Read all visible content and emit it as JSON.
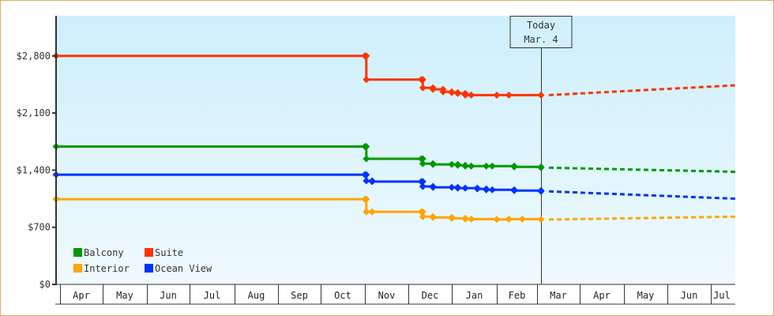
{
  "chart_data": {
    "type": "line",
    "title": "",
    "xlabel": "",
    "ylabel": "",
    "ylim": [
      0,
      3300
    ],
    "yticks": [
      {
        "value": 0,
        "label": "$0"
      },
      {
        "value": 700,
        "label": "$700"
      },
      {
        "value": 1400,
        "label": "$1,400"
      },
      {
        "value": 2100,
        "label": "$2,100"
      },
      {
        "value": 2800,
        "label": "$2,800"
      }
    ],
    "months": [
      "Apr",
      "May",
      "Jun",
      "Jul",
      "Aug",
      "Sep",
      "Oct",
      "Nov",
      "Dec",
      "Jan",
      "Feb",
      "Mar",
      "Apr",
      "May",
      "Jun",
      "Jul"
    ],
    "grid": false,
    "legend_position": "bottom-left inside",
    "legend": [
      {
        "name": "Balcony",
        "color": "#009900"
      },
      {
        "name": "Suite",
        "color": "#ff3300"
      },
      {
        "name": "Interior",
        "color": "#ffa500"
      },
      {
        "name": "Ocean View",
        "color": "#0033ff"
      }
    ],
    "annotation": {
      "line1": "Today",
      "line2": "Mar. 4"
    },
    "series": [
      {
        "name": "Suite",
        "color": "#ff3300",
        "step_points": [
          {
            "date": "Apr 1",
            "value": 2800
          },
          {
            "date": "Nov 1",
            "value": 2800
          },
          {
            "date": "Nov 2",
            "value": 2510
          },
          {
            "date": "Dec 10",
            "value": 2510
          },
          {
            "date": "Dec 11",
            "value": 2410
          },
          {
            "date": "Dec 18",
            "value": 2390
          },
          {
            "date": "Dec 25",
            "value": 2360
          },
          {
            "date": "Jan 1",
            "value": 2350
          },
          {
            "date": "Jan 5",
            "value": 2340
          },
          {
            "date": "Jan 10",
            "value": 2320
          },
          {
            "date": "Jan 14",
            "value": 2320
          },
          {
            "date": "Feb 1",
            "value": 2320
          },
          {
            "date": "Feb 10",
            "value": 2320
          },
          {
            "date": "Mar 4",
            "value": 2320
          }
        ],
        "forecast": [
          {
            "date": "Mar 4",
            "value": 2320
          },
          {
            "date": "Jul 31",
            "value": 2440
          }
        ]
      },
      {
        "name": "Balcony",
        "color": "#009900",
        "step_points": [
          {
            "date": "Apr 1",
            "value": 1690
          },
          {
            "date": "Nov 1",
            "value": 1690
          },
          {
            "date": "Nov 2",
            "value": 1540
          },
          {
            "date": "Dec 10",
            "value": 1540
          },
          {
            "date": "Dec 11",
            "value": 1480
          },
          {
            "date": "Dec 18",
            "value": 1470
          },
          {
            "date": "Jan 1",
            "value": 1470
          },
          {
            "date": "Jan 5",
            "value": 1460
          },
          {
            "date": "Jan 10",
            "value": 1450
          },
          {
            "date": "Jan 14",
            "value": 1450
          },
          {
            "date": "Jan 24",
            "value": 1450
          },
          {
            "date": "Jan 28",
            "value": 1450
          },
          {
            "date": "Feb 14",
            "value": 1440
          },
          {
            "date": "Mar 4",
            "value": 1430
          }
        ],
        "forecast": [
          {
            "date": "Mar 4",
            "value": 1430
          },
          {
            "date": "Jul 31",
            "value": 1380
          }
        ]
      },
      {
        "name": "Ocean View",
        "color": "#0033ff",
        "step_points": [
          {
            "date": "Apr 1",
            "value": 1345
          },
          {
            "date": "Nov 1",
            "value": 1345
          },
          {
            "date": "Nov 2",
            "value": 1270
          },
          {
            "date": "Nov 6",
            "value": 1260
          },
          {
            "date": "Dec 10",
            "value": 1260
          },
          {
            "date": "Dec 11",
            "value": 1200
          },
          {
            "date": "Dec 18",
            "value": 1190
          },
          {
            "date": "Jan 1",
            "value": 1190
          },
          {
            "date": "Jan 5",
            "value": 1180
          },
          {
            "date": "Jan 10",
            "value": 1180
          },
          {
            "date": "Jan 18",
            "value": 1170
          },
          {
            "date": "Jan 24",
            "value": 1160
          },
          {
            "date": "Jan 28",
            "value": 1160
          },
          {
            "date": "Feb 14",
            "value": 1150
          },
          {
            "date": "Mar 4",
            "value": 1140
          }
        ],
        "forecast": [
          {
            "date": "Mar 4",
            "value": 1140
          },
          {
            "date": "Jul 31",
            "value": 1050
          }
        ]
      },
      {
        "name": "Interior",
        "color": "#ffa500",
        "step_points": [
          {
            "date": "Apr 1",
            "value": 1045
          },
          {
            "date": "Nov 1",
            "value": 1045
          },
          {
            "date": "Nov 2",
            "value": 890
          },
          {
            "date": "Nov 6",
            "value": 890
          },
          {
            "date": "Dec 10",
            "value": 890
          },
          {
            "date": "Dec 11",
            "value": 830
          },
          {
            "date": "Dec 18",
            "value": 820
          },
          {
            "date": "Jan 1",
            "value": 810
          },
          {
            "date": "Jan 10",
            "value": 800
          },
          {
            "date": "Jan 14",
            "value": 800
          },
          {
            "date": "Feb 1",
            "value": 795
          },
          {
            "date": "Feb 10",
            "value": 800
          },
          {
            "date": "Feb 20",
            "value": 800
          },
          {
            "date": "Mar 4",
            "value": 795
          }
        ],
        "forecast": [
          {
            "date": "Mar 4",
            "value": 795
          },
          {
            "date": "Jul 31",
            "value": 830
          }
        ]
      }
    ]
  }
}
